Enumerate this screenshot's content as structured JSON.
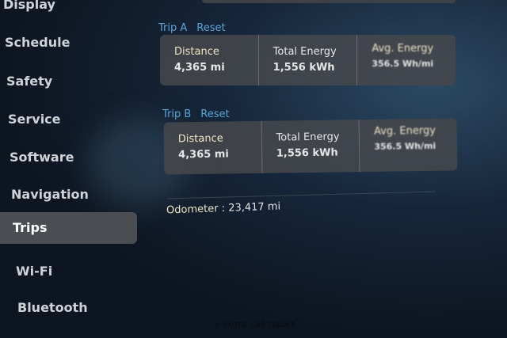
{
  "sidebar": {
    "items": [
      {
        "label": "Display",
        "active": false
      },
      {
        "label": "Schedule",
        "active": false
      },
      {
        "label": "Safety",
        "active": false
      },
      {
        "label": "Service",
        "active": false
      },
      {
        "label": "Software",
        "active": false
      },
      {
        "label": "Navigation",
        "active": false
      },
      {
        "label": "Trips",
        "active": true
      },
      {
        "label": "Wi-Fi",
        "active": false
      },
      {
        "label": "Bluetooth",
        "active": false
      }
    ]
  },
  "trips": [
    {
      "title": "Trip A",
      "reset_label": "Reset",
      "distance_label": "Distance",
      "distance": "4,365 mi",
      "energy_label": "Total Energy",
      "energy": "1,556 kWh",
      "avg_label": "Avg. Energy",
      "avg": "356.5 Wh/mi"
    },
    {
      "title": "Trip B",
      "reset_label": "Reset",
      "distance_label": "Distance",
      "distance": "4,365 mi",
      "energy_label": "Total Energy",
      "energy": "1,556 kWh",
      "avg_label": "Avg. Energy",
      "avg": "356.5 Wh/mi"
    }
  ],
  "odometer": {
    "label": "Odometer",
    "value": "23,417 mi"
  },
  "watermark": "© EXOTIC CAR TRADER",
  "colors": {
    "accent": "#5ba6d8",
    "active_bg": "#4a4d52"
  }
}
